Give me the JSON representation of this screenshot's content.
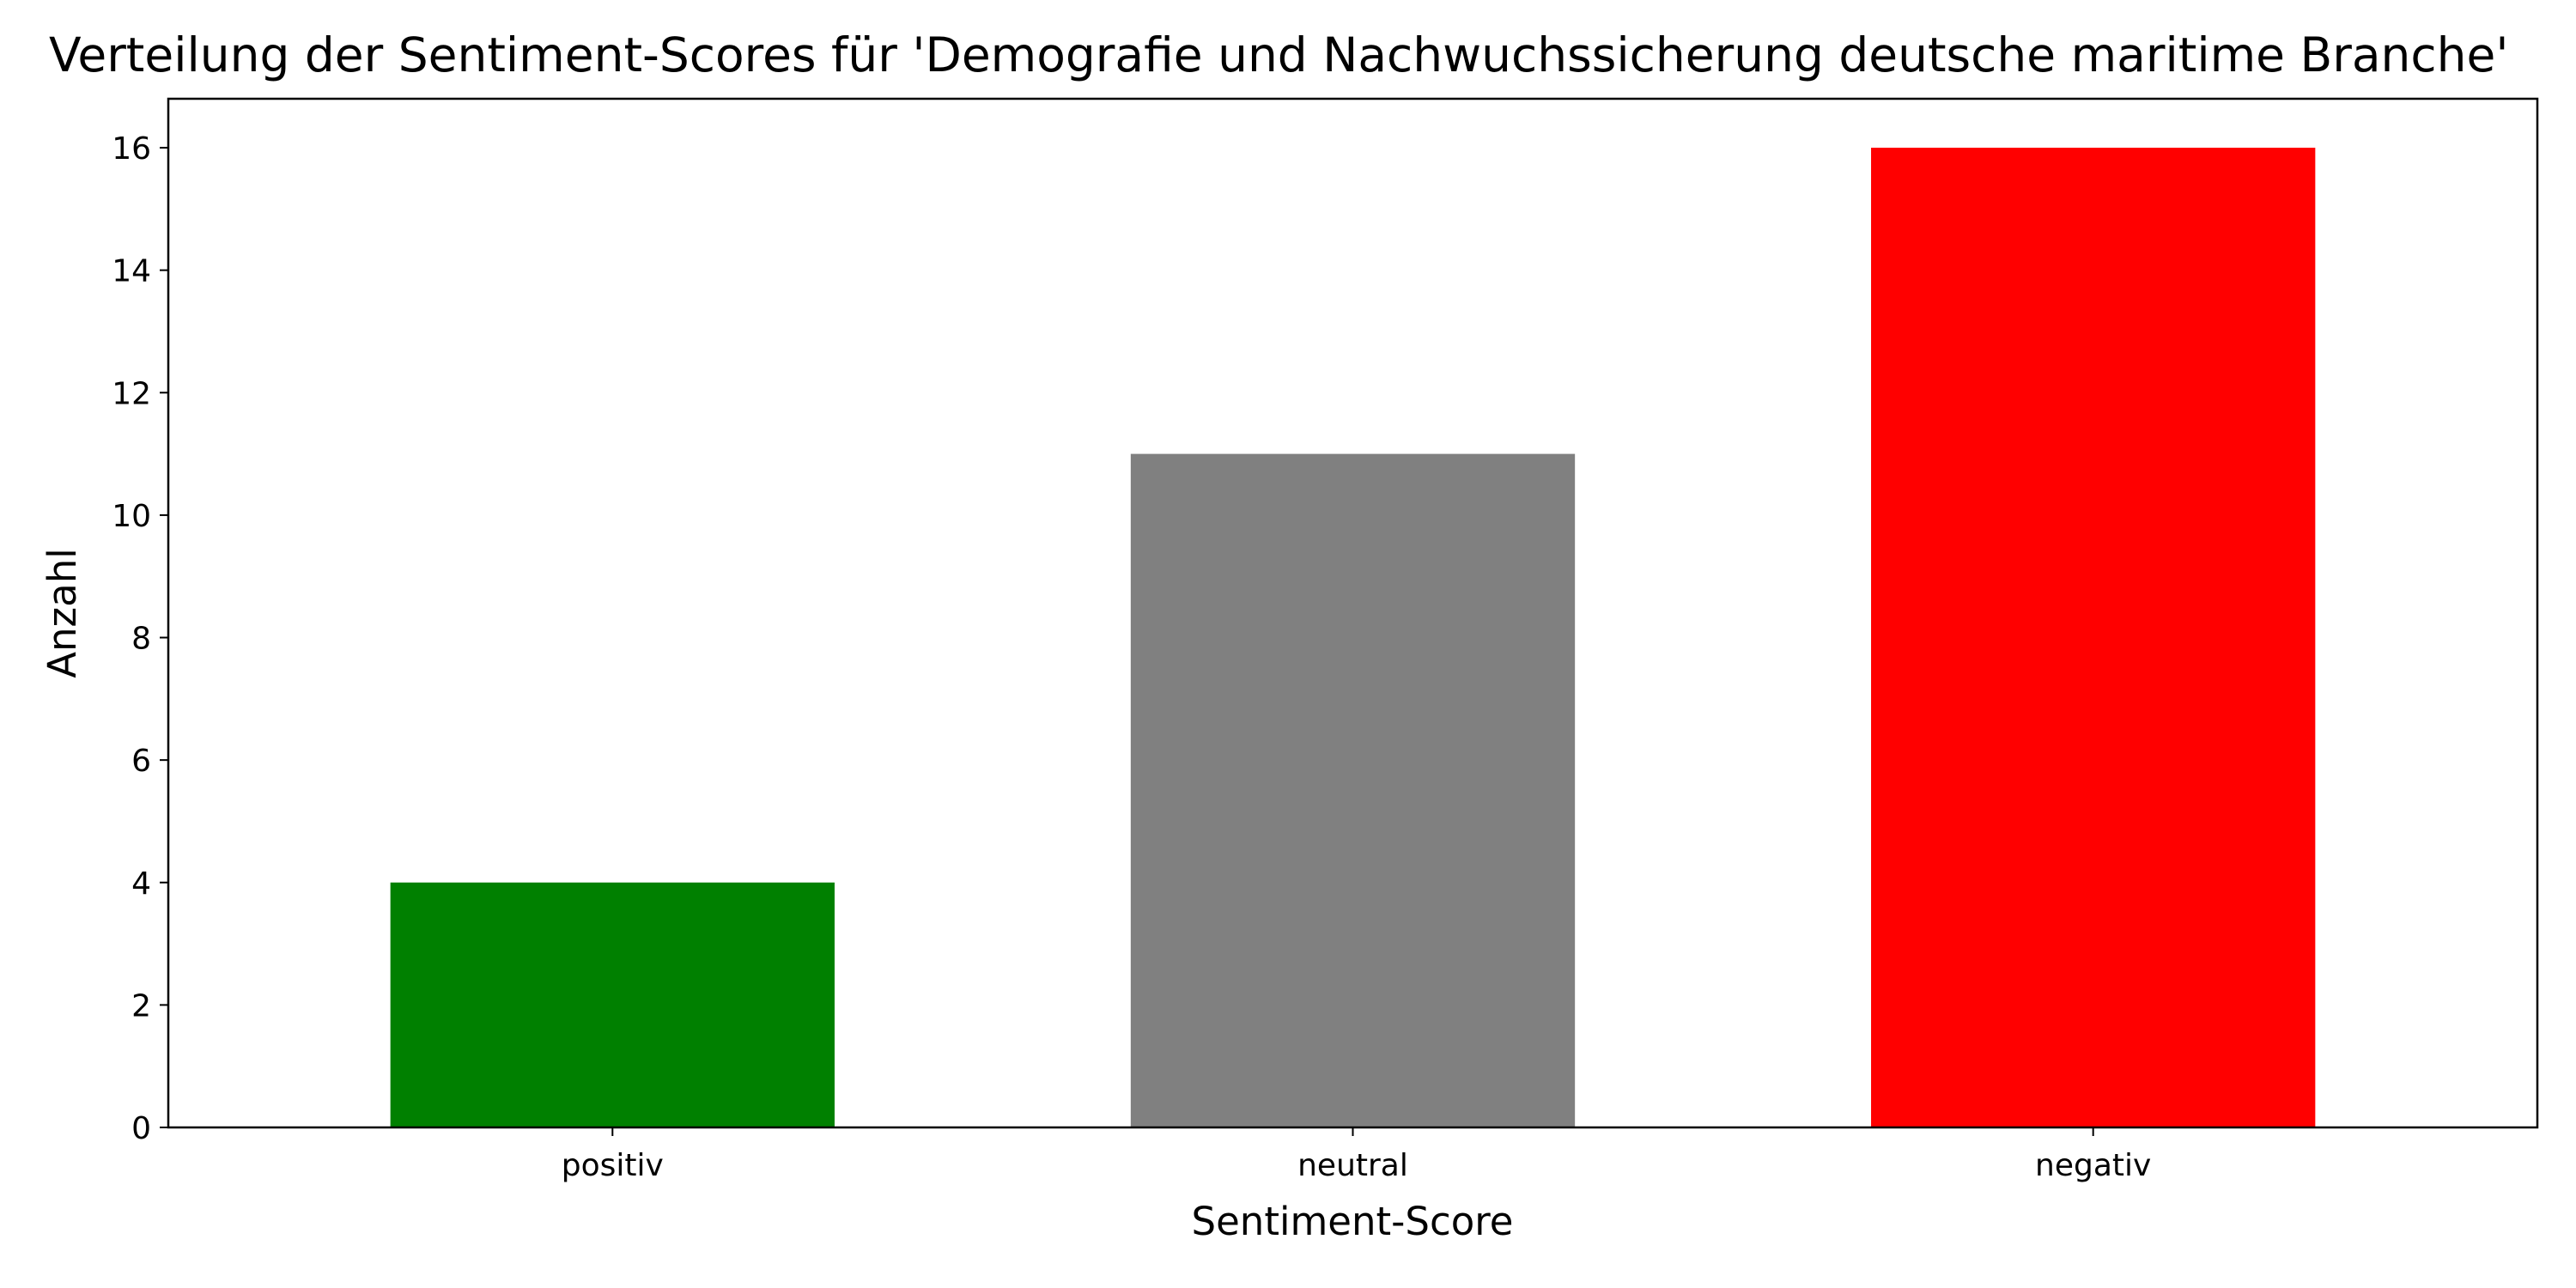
{
  "chart_data": {
    "type": "bar",
    "title": "Verteilung der Sentiment-Scores für 'Demografie und Nachwuchssicherung deutsche maritime Branche'",
    "xlabel": "Sentiment-Score",
    "ylabel": "Anzahl",
    "categories": [
      "positiv",
      "neutral",
      "negativ"
    ],
    "values": [
      4,
      11,
      16
    ],
    "colors": [
      "#008000",
      "#808080",
      "#ff0000"
    ],
    "y_ticks": [
      "0",
      "2",
      "4",
      "6",
      "8",
      "10",
      "12",
      "14",
      "16"
    ],
    "ylim": [
      0,
      16.8
    ],
    "grid": false,
    "legend": false,
    "baseline_dashed": true
  }
}
